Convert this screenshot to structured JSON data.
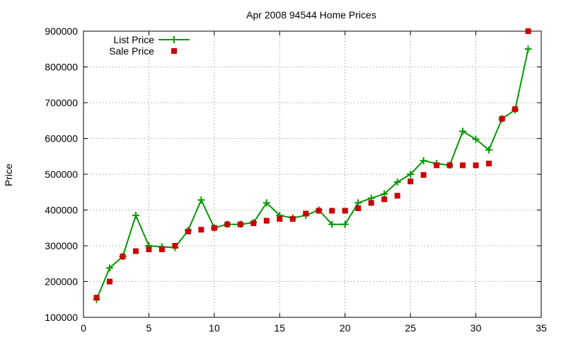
{
  "chart_data": {
    "type": "line",
    "title": "Apr 2008 94544 Home Prices",
    "xlabel": "",
    "ylabel": "Price",
    "xlim": [
      0,
      35
    ],
    "ylim": [
      100000,
      900000
    ],
    "x_ticks": [
      "0",
      "5",
      "10",
      "15",
      "20",
      "25",
      "30",
      "35"
    ],
    "y_ticks": [
      "100000",
      "200000",
      "300000",
      "400000",
      "500000",
      "600000",
      "700000",
      "800000",
      "900000"
    ],
    "grid": true,
    "legend_position": "top-left",
    "series": [
      {
        "name": "List Price",
        "style": "line-plus",
        "color": "#009900",
        "x": [
          1,
          2,
          3,
          4,
          5,
          6,
          7,
          8,
          9,
          10,
          11,
          12,
          13,
          14,
          15,
          16,
          17,
          18,
          19,
          20,
          21,
          22,
          23,
          24,
          25,
          26,
          27,
          28,
          29,
          30,
          31,
          32,
          33,
          34
        ],
        "y": [
          150000,
          238000,
          270000,
          385000,
          300000,
          297000,
          295000,
          343000,
          428000,
          350000,
          360000,
          360000,
          365000,
          420000,
          385000,
          378000,
          385000,
          400000,
          360000,
          360000,
          420000,
          433000,
          445000,
          478000,
          500000,
          538000,
          530000,
          525000,
          620000,
          598000,
          568000,
          655000,
          680000,
          850000
        ]
      },
      {
        "name": "Sale Price",
        "style": "points-square",
        "color": "#cc0000",
        "x": [
          1,
          2,
          3,
          4,
          5,
          6,
          7,
          8,
          9,
          10,
          11,
          12,
          13,
          14,
          15,
          16,
          17,
          18,
          19,
          20,
          21,
          22,
          23,
          24,
          25,
          26,
          27,
          28,
          29,
          30,
          31,
          32,
          33,
          34
        ],
        "y": [
          155000,
          200000,
          270000,
          285000,
          290000,
          290000,
          300000,
          340000,
          345000,
          350000,
          360000,
          360000,
          363000,
          370000,
          375000,
          375000,
          390000,
          398000,
          398000,
          398000,
          405000,
          420000,
          430000,
          440000,
          480000,
          498000,
          525000,
          525000,
          525000,
          525000,
          530000,
          655000,
          682000,
          900000
        ]
      }
    ]
  }
}
